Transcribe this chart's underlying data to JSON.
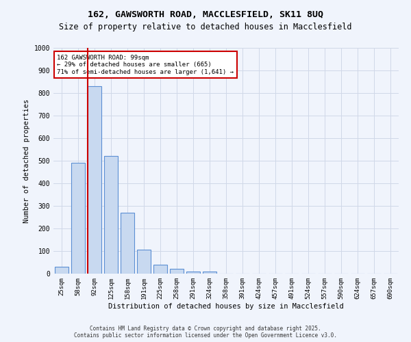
{
  "title_line1": "162, GAWSWORTH ROAD, MACCLESFIELD, SK11 8UQ",
  "title_line2": "Size of property relative to detached houses in Macclesfield",
  "xlabel": "Distribution of detached houses by size in Macclesfield",
  "ylabel": "Number of detached properties",
  "bar_labels": [
    "25sqm",
    "58sqm",
    "92sqm",
    "125sqm",
    "158sqm",
    "191sqm",
    "225sqm",
    "258sqm",
    "291sqm",
    "324sqm",
    "358sqm",
    "391sqm",
    "424sqm",
    "457sqm",
    "491sqm",
    "524sqm",
    "557sqm",
    "590sqm",
    "624sqm",
    "657sqm",
    "690sqm"
  ],
  "bar_values": [
    30,
    490,
    830,
    520,
    270,
    107,
    38,
    20,
    10,
    10,
    0,
    0,
    0,
    0,
    0,
    0,
    0,
    0,
    0,
    0,
    0
  ],
  "bar_color": "#c8d9f0",
  "bar_edge_color": "#5b8fd4",
  "red_line_index": 2,
  "red_line_color": "#cc0000",
  "annotation_text": "162 GAWSWORTH ROAD: 99sqm\n← 29% of detached houses are smaller (665)\n71% of semi-detached houses are larger (1,641) →",
  "annotation_box_color": "#ffffff",
  "annotation_box_edge": "#cc0000",
  "ylim": [
    0,
    1000
  ],
  "yticks": [
    0,
    100,
    200,
    300,
    400,
    500,
    600,
    700,
    800,
    900,
    1000
  ],
  "grid_color": "#d0d8e8",
  "footer_text": "Contains HM Land Registry data © Crown copyright and database right 2025.\nContains public sector information licensed under the Open Government Licence v3.0.",
  "bg_color": "#f0f4fc",
  "plot_bg_color": "#f0f4fc"
}
